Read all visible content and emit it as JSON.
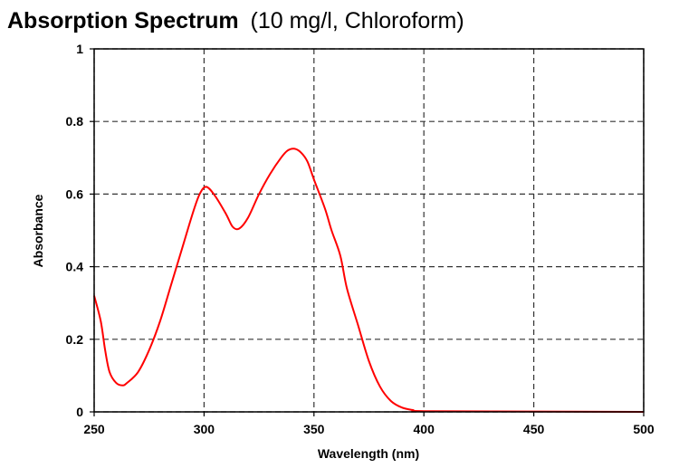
{
  "chart_data": {
    "type": "line",
    "title": "Absorption Spectrum",
    "subtitle": "(10 mg/l, Chloroform)",
    "xlabel": "Wavelength (nm)",
    "ylabel": "Absorbance",
    "xlim": [
      250,
      500
    ],
    "ylim": [
      0,
      1
    ],
    "xticks": [
      250,
      300,
      350,
      400,
      450,
      500
    ],
    "yticks": [
      0,
      0.2,
      0.4,
      0.6,
      0.8,
      1
    ],
    "ytick_labels": [
      "0",
      "0.2",
      "0.4",
      "0.6",
      "0.8",
      "1"
    ],
    "grid": true,
    "grid_style": "dashed",
    "legend": "none",
    "series": [
      {
        "color": "#ff0000",
        "x": [
          250,
          253,
          255,
          257,
          260,
          263,
          265,
          270,
          275,
          280,
          285,
          290,
          295,
          298,
          301,
          305,
          310,
          313,
          316,
          320,
          325,
          330,
          335,
          338,
          341,
          344,
          347,
          350,
          355,
          358,
          362,
          365,
          370,
          375,
          380,
          385,
          390,
          395,
          400,
          450,
          500
        ],
        "y": [
          0.32,
          0.25,
          0.17,
          0.11,
          0.08,
          0.073,
          0.08,
          0.11,
          0.17,
          0.25,
          0.35,
          0.45,
          0.55,
          0.6,
          0.62,
          0.595,
          0.545,
          0.51,
          0.505,
          0.535,
          0.6,
          0.655,
          0.7,
          0.72,
          0.725,
          0.715,
          0.69,
          0.64,
          0.56,
          0.5,
          0.43,
          0.34,
          0.24,
          0.14,
          0.07,
          0.03,
          0.012,
          0.005,
          0.002,
          0.001,
          0.0
        ]
      }
    ]
  }
}
